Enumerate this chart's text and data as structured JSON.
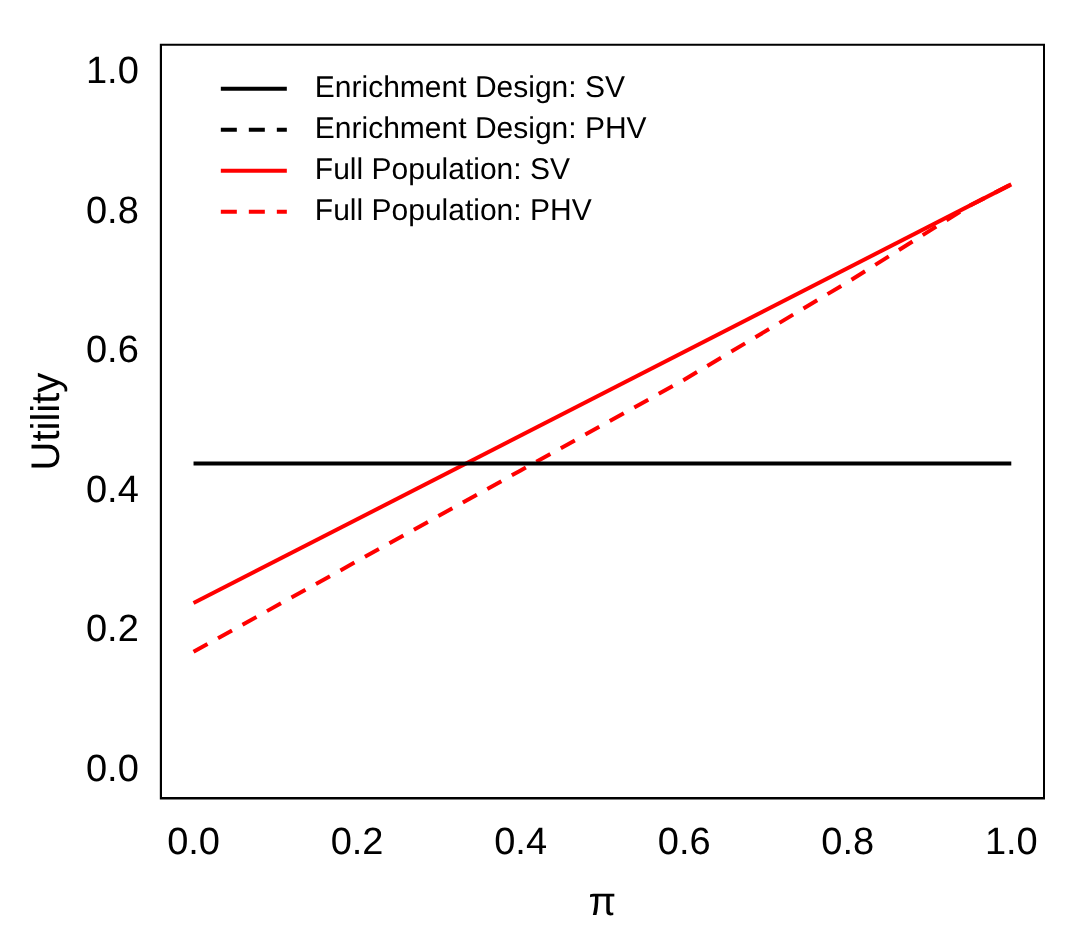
{
  "chart_data": {
    "type": "line",
    "xlabel": "π",
    "ylabel": "Utility",
    "xlim": [
      -0.04,
      1.04
    ],
    "ylim": [
      -0.04,
      1.04
    ],
    "xticks": [
      {
        "value": 0,
        "label": "0.0"
      },
      {
        "value": 0.2,
        "label": "0.2"
      },
      {
        "value": 0.4,
        "label": "0.4"
      },
      {
        "value": 0.6,
        "label": "0.6"
      },
      {
        "value": 0.8,
        "label": "0.8"
      },
      {
        "value": 1,
        "label": "1.0"
      }
    ],
    "yticks": [
      {
        "value": 0,
        "label": "0.0"
      },
      {
        "value": 0.2,
        "label": "0.2"
      },
      {
        "value": 0.4,
        "label": "0.4"
      },
      {
        "value": 0.6,
        "label": "0.6"
      },
      {
        "value": 0.8,
        "label": "0.8"
      },
      {
        "value": 1,
        "label": "1.0"
      }
    ],
    "grid": false,
    "legend": "top left",
    "marker": "none",
    "series": [
      {
        "name": "Enrichment Design: SV",
        "color": "#000000",
        "line_style": "solid",
        "x": [
          0,
          1
        ],
        "values": [
          0.44,
          0.44
        ]
      },
      {
        "name": "Enrichment Design: PHV",
        "color": "#000000",
        "line_style": "dashed"
      },
      {
        "name": "Full Population: SV",
        "color": "#ff0000",
        "line_style": "solid",
        "x": [
          0,
          1
        ],
        "values": [
          0.24,
          0.84
        ]
      },
      {
        "name": "Full Population: PHV",
        "color": "#ff0000",
        "line_style": "dashed",
        "x": [
          0,
          0.4,
          0.6,
          0.8,
          0.95,
          1
        ],
        "values": [
          0.17,
          0.43,
          0.56,
          0.7,
          0.81,
          0.84
        ]
      }
    ]
  }
}
